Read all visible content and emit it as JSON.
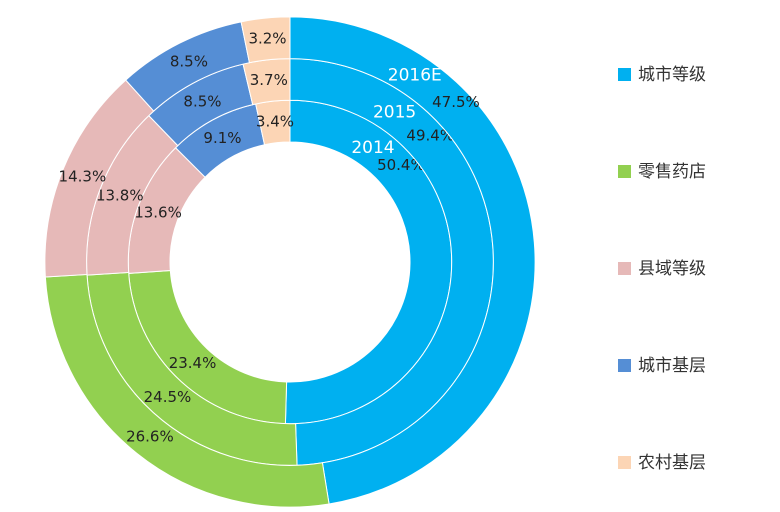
{
  "chart_data": {
    "type": "donut",
    "categories": [
      "城市等级",
      "零售药店",
      "县域等级",
      "城市基层",
      "农村基层"
    ],
    "colors": [
      "#00b0f0",
      "#92d050",
      "#e6b9b8",
      "#558ed5",
      "#fcd5b5"
    ],
    "series": [
      {
        "name": "2014",
        "values": [
          50.4,
          23.4,
          13.6,
          9.1,
          3.4
        ],
        "value_labels": [
          "50.4%",
          "23.4%",
          "13.6%",
          "9.1%",
          "3.4%"
        ]
      },
      {
        "name": "2015",
        "values": [
          49.4,
          24.5,
          13.8,
          8.5,
          3.7
        ],
        "value_labels": [
          "49.4%",
          "24.5%",
          "13.8%",
          "8.5%",
          "3.7%"
        ]
      },
      {
        "name": "2016E",
        "values": [
          47.5,
          26.6,
          14.3,
          8.5,
          3.2
        ],
        "value_labels": [
          "47.5%",
          "26.6%",
          "14.3%",
          "8.5%",
          "3.2%"
        ]
      }
    ],
    "legend": "right"
  }
}
